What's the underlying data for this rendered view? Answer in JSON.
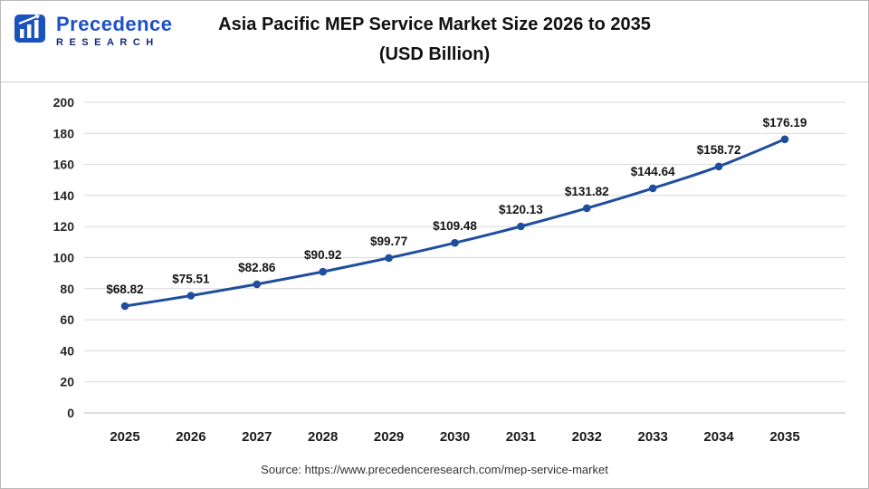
{
  "header": {
    "logo": {
      "brand_top": "Precedence",
      "brand_bottom": "RESEARCH",
      "icon": "bar-chart-logo-icon",
      "color_primary": "#1d50c8",
      "color_secondary": "#12297b"
    },
    "title_line1": "Asia Pacific MEP Service Market Size 2026 to 2035",
    "title_line2": "(USD Billion)"
  },
  "chart_data": {
    "type": "line",
    "title": "Asia Pacific MEP Service Market Size 2026 to 2035 (USD Billion)",
    "categories": [
      "2025",
      "2026",
      "2027",
      "2028",
      "2029",
      "2030",
      "2031",
      "2032",
      "2033",
      "2034",
      "2035"
    ],
    "values": [
      68.82,
      75.51,
      82.86,
      90.92,
      99.77,
      109.48,
      120.13,
      131.82,
      144.64,
      158.72,
      176.19
    ],
    "point_labels": [
      "$68.82",
      "$75.51",
      "$82.86",
      "$90.92",
      "$99.77",
      "$109.48",
      "$120.13",
      "$131.82",
      "$144.64",
      "$158.72",
      "$176.19"
    ],
    "xlabel": "",
    "ylabel": "",
    "ylim": [
      0,
      200
    ],
    "ytick_step": 20,
    "grid": true,
    "legend": "none",
    "line_color": "#1f4e9e",
    "grid_color": "#d9d9d9",
    "baseline_color": "#bdbdbd",
    "marker": "circle"
  },
  "footer": {
    "source": "Source: https://www.precedenceresearch.com/mep-service-market"
  }
}
